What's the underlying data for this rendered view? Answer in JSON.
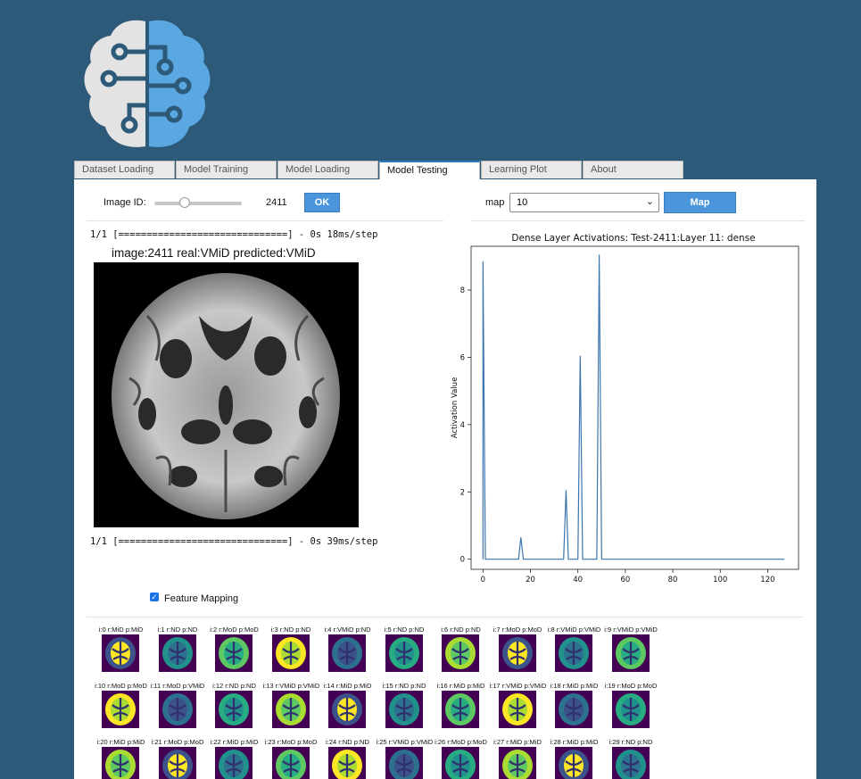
{
  "tabs": [
    {
      "label": "Dataset Loading",
      "active": false
    },
    {
      "label": "Model Training",
      "active": false
    },
    {
      "label": "Model Loading",
      "active": false
    },
    {
      "label": "Model Testing",
      "active": true
    },
    {
      "label": "Learning Plot",
      "active": false
    },
    {
      "label": "About",
      "active": false
    }
  ],
  "controls": {
    "image_id_label": "Image ID:",
    "image_id_value": "2411",
    "slider_fraction": 0.35,
    "ok_label": "OK",
    "map_label": "map",
    "map_selected": "10",
    "map_button": "Map"
  },
  "output": {
    "progress_1": "1/1 [==============================] - 0s 18ms/step",
    "image_caption": "image:2411 real:VMiD predicted:VMiD",
    "progress_2": "1/1 [==============================] - 0s 39ms/step"
  },
  "feature_mapping": {
    "label": "Feature Mapping",
    "checked": true
  },
  "chart_data": {
    "type": "line",
    "title": "Dense Layer Activations: Test-2411:Layer 11: dense",
    "ylabel": "Activation Value",
    "xlabel": "",
    "xlim": [
      -5,
      133
    ],
    "ylim": [
      -0.3,
      9.3
    ],
    "xticks": [
      0,
      20,
      40,
      60,
      80,
      100,
      120
    ],
    "yticks": [
      0,
      2,
      4,
      6,
      8
    ],
    "grid": false,
    "line_color": "#3b75af",
    "points": [
      [
        0,
        0
      ],
      [
        0,
        8.85
      ],
      [
        1,
        0
      ],
      [
        15,
        0
      ],
      [
        16,
        0.65
      ],
      [
        17,
        0
      ],
      [
        34,
        0
      ],
      [
        35,
        2.05
      ],
      [
        36,
        0
      ],
      [
        40,
        0
      ],
      [
        41,
        6.05
      ],
      [
        42,
        0
      ],
      [
        48,
        0
      ],
      [
        49,
        9.05
      ],
      [
        50,
        0
      ],
      [
        127,
        0
      ]
    ]
  },
  "thumbnails": [
    [
      "i:0 r:MiD p:MiD",
      "i:1 r:ND p:ND",
      "i:2 r:MoD p:MoD",
      "i:3 r:ND p:ND",
      "i:4 r:VMiD p:ND",
      "i:5 r:ND p:ND",
      "i:6 r:ND p:ND",
      "i:7 r:MoD p:MoD",
      "i:8 r:VMiD p:VMiD",
      "i:9 r:VMiD p:VMiD"
    ],
    [
      "i:10 r:MoD p:MoD",
      "i:11 r:MoD p:VMiD",
      "i:12 r:ND p:ND",
      "i:13 r:VMiD p:VMiD",
      "i:14 r:MiD p:MiD",
      "i:15 r:ND p:ND",
      "i:16 r:MiD p:MiD",
      "i:17 r:VMiD p:VMiD",
      "i:18 r:MiD p:MiD",
      "i:19 r:MoD p:MoD"
    ],
    [
      "i:20 r:MiD p:MiD",
      "i:21 r:MoD p:MoD",
      "i:22 r:MiD p:MiD",
      "i:23 r:MoD p:MoD",
      "i:24 r:ND p:ND",
      "i:25 r:VMiD p:VMiD",
      "i:26 r:MoD p:MoD",
      "i:27 r:MiD p:MiD",
      "i:28 r:MiD p:MiD",
      "i:29 r:ND p:ND"
    ]
  ]
}
